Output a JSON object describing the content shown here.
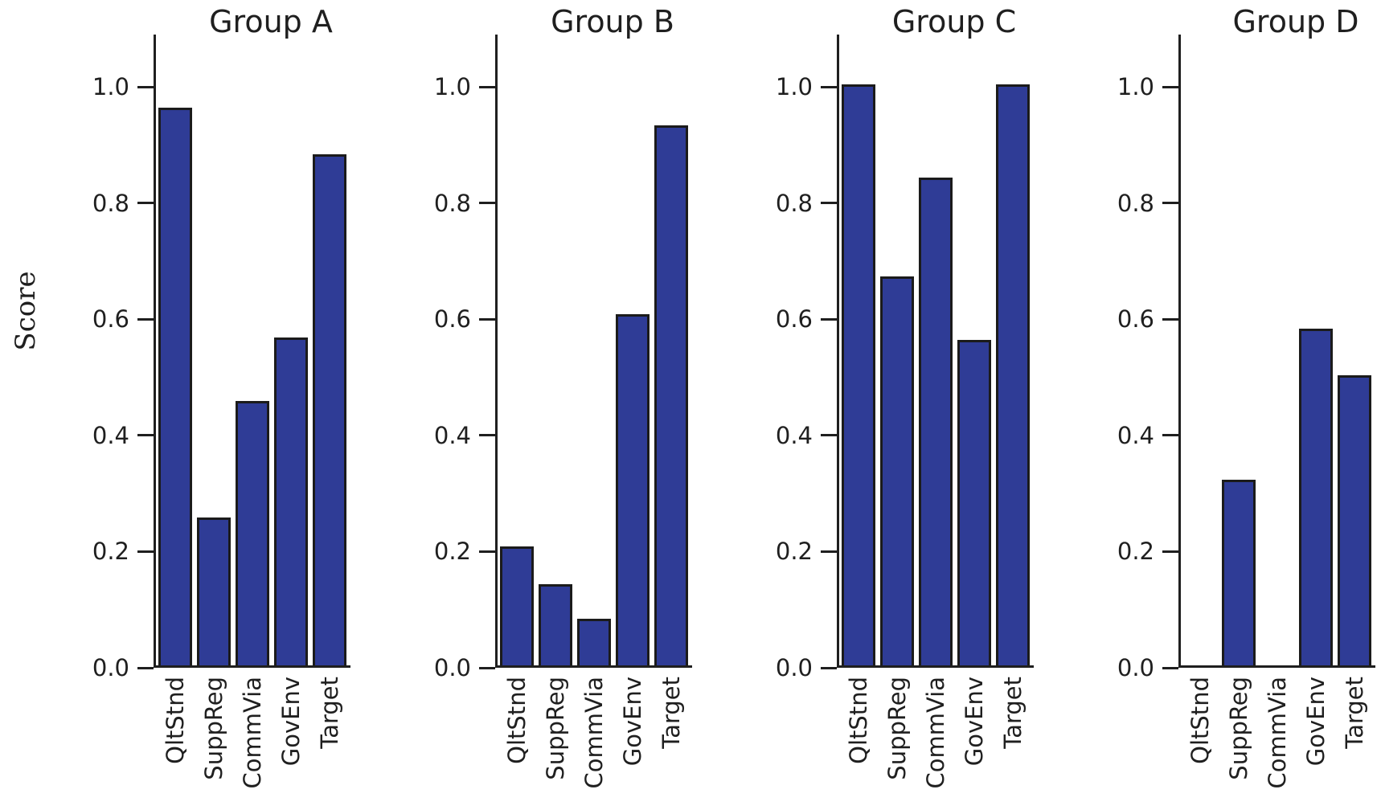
{
  "chart_data": {
    "type": "bar",
    "ylabel": "Score",
    "categories": [
      "QltStnd",
      "SuppReg",
      "CommVia",
      "GovEnv",
      "Target"
    ],
    "subplots": [
      {
        "title": "Group A",
        "values": [
          0.96,
          0.255,
          0.455,
          0.565,
          0.88
        ]
      },
      {
        "title": "Group B",
        "values": [
          0.205,
          0.14,
          0.08,
          0.605,
          0.93
        ]
      },
      {
        "title": "Group C",
        "values": [
          1.0,
          0.67,
          0.84,
          0.56,
          1.0
        ]
      },
      {
        "title": "Group D",
        "values": [
          0.0,
          0.32,
          0.0,
          0.58,
          0.5
        ]
      }
    ],
    "yticks": [
      0.0,
      0.2,
      0.4,
      0.6,
      0.8,
      1.0
    ],
    "ytick_labels": [
      "0.0",
      "0.2",
      "0.4",
      "0.6",
      "0.8",
      "1.0"
    ],
    "ylim": [
      0,
      1.09
    ],
    "grid": false,
    "legend": null,
    "colors": {
      "bar_fill": "#2f3c96",
      "bar_edge": "#1b1b1b",
      "axis": "#1f1f1f",
      "text": "#1f1f1f",
      "background": "#ffffff"
    }
  }
}
